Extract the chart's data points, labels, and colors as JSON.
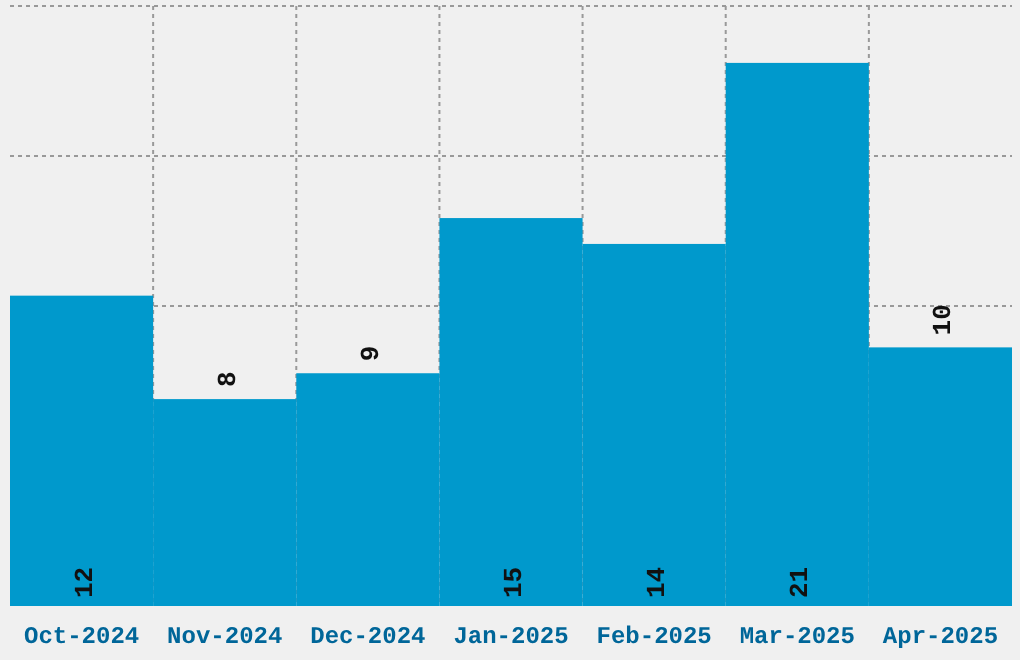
{
  "chart_data": {
    "type": "bar",
    "categories": [
      "Oct-2024",
      "Nov-2024",
      "Dec-2024",
      "Jan-2025",
      "Feb-2025",
      "Mar-2025",
      "Apr-2025"
    ],
    "values": [
      12,
      8,
      9,
      15,
      14,
      21,
      10
    ],
    "color": "#0099cc",
    "ylim": [
      0,
      23.2
    ],
    "grid": true,
    "data_labels": true,
    "tick_labels": "x"
  }
}
